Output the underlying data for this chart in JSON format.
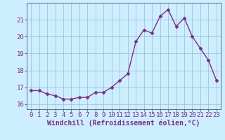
{
  "x": [
    0,
    1,
    2,
    3,
    4,
    5,
    6,
    7,
    8,
    9,
    10,
    11,
    12,
    13,
    14,
    15,
    16,
    17,
    18,
    19,
    20,
    21,
    22,
    23
  ],
  "y": [
    16.8,
    16.8,
    16.6,
    16.5,
    16.3,
    16.3,
    16.4,
    16.4,
    16.7,
    16.7,
    17.0,
    17.4,
    17.8,
    19.7,
    20.4,
    20.2,
    21.2,
    21.6,
    20.6,
    21.1,
    20.0,
    19.3,
    18.6,
    17.4
  ],
  "line_color": "#7b2d8b",
  "marker": "D",
  "marker_size": 2.5,
  "background_color": "#cceeff",
  "grid_color": "#99bbcc",
  "xlabel": "Windchill (Refroidissement éolien,°C)",
  "xlabel_fontsize": 7,
  "tick_fontsize": 6.5,
  "ylabel_ticks": [
    16,
    17,
    18,
    19,
    20,
    21
  ],
  "xlim": [
    -0.5,
    23.5
  ],
  "ylim": [
    15.7,
    22.0
  ],
  "line_width": 1.0
}
